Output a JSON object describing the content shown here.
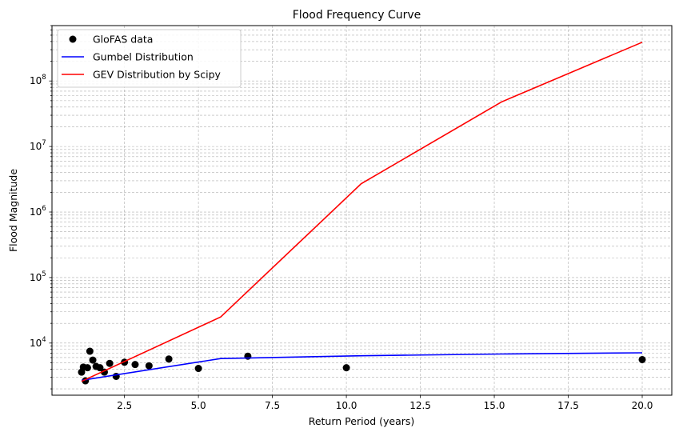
{
  "chart_data": {
    "type": "line",
    "title": "Flood Frequency Curve",
    "xlabel": "Return Period (years)",
    "ylabel": "Flood Magnitude",
    "xlim": [
      0.05,
      21.0
    ],
    "ylim": [
      1600,
      700000000
    ],
    "yscale": "log",
    "grid": true,
    "legend_position": "top-left",
    "x_ticks": [
      "2.5",
      "5.0",
      "7.5",
      "10.0",
      "12.5",
      "15.0",
      "17.5",
      "20.0"
    ],
    "x_tick_values": [
      2.5,
      5.0,
      7.5,
      10.0,
      12.5,
      15.0,
      17.5,
      20.0
    ],
    "y_ticks": [
      {
        "value": 10000,
        "base": "10",
        "exp": "4"
      },
      {
        "value": 100000,
        "base": "10",
        "exp": "5"
      },
      {
        "value": 1000000,
        "base": "10",
        "exp": "6"
      },
      {
        "value": 10000000,
        "base": "10",
        "exp": "7"
      },
      {
        "value": 100000000,
        "base": "10",
        "exp": "8"
      }
    ],
    "series": [
      {
        "name": "GloFAS data",
        "kind": "scatter",
        "color": "#000000",
        "points": [
          {
            "x": 1.05,
            "y": 3600
          },
          {
            "x": 1.11,
            "y": 4300
          },
          {
            "x": 1.18,
            "y": 2650
          },
          {
            "x": 1.25,
            "y": 4200
          },
          {
            "x": 1.33,
            "y": 7500
          },
          {
            "x": 1.43,
            "y": 5500
          },
          {
            "x": 1.54,
            "y": 4400
          },
          {
            "x": 1.67,
            "y": 4200
          },
          {
            "x": 1.82,
            "y": 3600
          },
          {
            "x": 2.0,
            "y": 4900
          },
          {
            "x": 2.22,
            "y": 3100
          },
          {
            "x": 2.5,
            "y": 5100
          },
          {
            "x": 2.86,
            "y": 4700
          },
          {
            "x": 3.33,
            "y": 4500
          },
          {
            "x": 4.0,
            "y": 5700
          },
          {
            "x": 5.0,
            "y": 4100
          },
          {
            "x": 6.67,
            "y": 6300
          },
          {
            "x": 10.0,
            "y": 4200
          },
          {
            "x": 20.0,
            "y": 5600
          }
        ]
      },
      {
        "name": "Gumbel Distribution",
        "kind": "line",
        "color": "#0000ff",
        "points": [
          {
            "x": 1.05,
            "y": 2700
          },
          {
            "x": 5.75,
            "y": 5800
          },
          {
            "x": 10.5,
            "y": 6400
          },
          {
            "x": 15.25,
            "y": 6800
          },
          {
            "x": 20.0,
            "y": 7100
          }
        ]
      },
      {
        "name": "GEV Distribution by Scipy",
        "kind": "line",
        "color": "#ff0000",
        "points": [
          {
            "x": 1.05,
            "y": 2600
          },
          {
            "x": 5.75,
            "y": 25000
          },
          {
            "x": 10.5,
            "y": 2700000
          },
          {
            "x": 15.25,
            "y": 48000000
          },
          {
            "x": 20.0,
            "y": 390000000
          }
        ]
      }
    ]
  }
}
